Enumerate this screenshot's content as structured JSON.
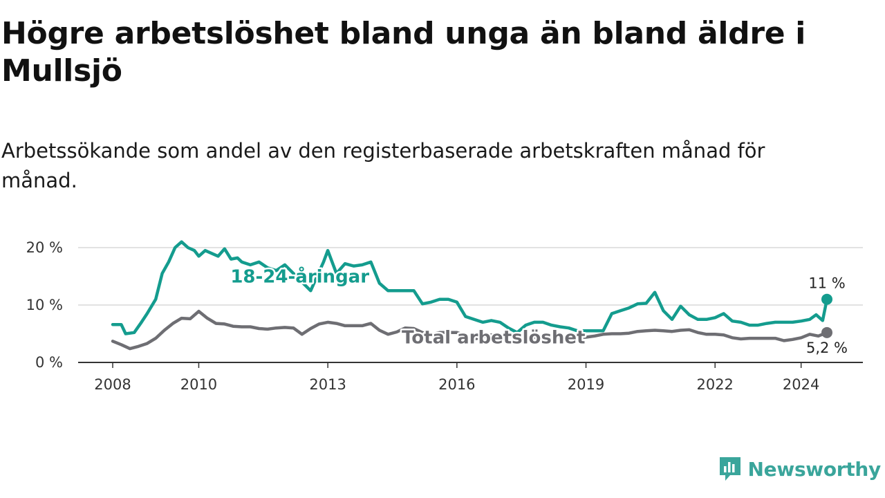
{
  "header": {
    "title": "Högre arbetslöshet bland unga än bland äldre i Mullsjö",
    "subtitle": "Arbetssökande som andel av den registerbaserade arbetskraften månad för månad."
  },
  "brand": {
    "name": "Newsworthy",
    "icon": "newsworthy-logo-icon",
    "color": "#3aa59b"
  },
  "chart_data": {
    "type": "line",
    "title": "Högre arbetslöshet bland unga än bland äldre i Mullsjö",
    "subtitle": "Arbetssökande som andel av den registerbaserade arbetskraften månad för månad.",
    "xlabel": "",
    "ylabel": "",
    "xlim": [
      2008.0,
      2025.3
    ],
    "ylim": [
      0,
      20
    ],
    "grid": true,
    "y_ticks": [
      {
        "value": 0,
        "label": "0 %"
      },
      {
        "value": 10,
        "label": "10 %"
      },
      {
        "value": 20,
        "label": "20 %"
      }
    ],
    "x_ticks": [
      {
        "value": 2008,
        "label": "2008"
      },
      {
        "value": 2010,
        "label": "2010"
      },
      {
        "value": 2013,
        "label": "2013"
      },
      {
        "value": 2016,
        "label": "2016"
      },
      {
        "value": 2019,
        "label": "2019"
      },
      {
        "value": 2022,
        "label": "2022"
      },
      {
        "value": 2024,
        "label": "2024"
      }
    ],
    "series": [
      {
        "name": "18-24-åringar",
        "color": "#149c8e",
        "end_value": 11,
        "end_label": "11 %",
        "x": [
          2008.0,
          2008.2,
          2008.3,
          2008.5,
          2008.65,
          2008.8,
          2009.0,
          2009.15,
          2009.3,
          2009.45,
          2009.6,
          2009.75,
          2009.9,
          2010.0,
          2010.15,
          2010.3,
          2010.45,
          2010.6,
          2010.75,
          2010.9,
          2011.0,
          2011.2,
          2011.4,
          2011.6,
          2011.8,
          2012.0,
          2012.2,
          2012.4,
          2012.6,
          2012.75,
          2012.9,
          2013.0,
          2013.2,
          2013.4,
          2013.6,
          2013.8,
          2014.0,
          2014.2,
          2014.4,
          2014.6,
          2014.8,
          2015.0,
          2015.2,
          2015.4,
          2015.6,
          2015.8,
          2016.0,
          2016.2,
          2016.4,
          2016.6,
          2016.8,
          2017.0,
          2017.2,
          2017.4,
          2017.6,
          2017.8,
          2018.0,
          2018.2,
          2018.4,
          2018.6,
          2018.8,
          2019.0,
          2019.2,
          2019.4,
          2019.6,
          2019.8,
          2020.0,
          2020.2,
          2020.4,
          2020.6,
          2020.8,
          2021.0,
          2021.2,
          2021.4,
          2021.6,
          2021.8,
          2022.0,
          2022.2,
          2022.4,
          2022.6,
          2022.8,
          2023.0,
          2023.2,
          2023.4,
          2023.6,
          2023.8,
          2024.0,
          2024.2,
          2024.35,
          2024.5,
          2024.6
        ],
        "values": [
          6.6,
          6.6,
          5.0,
          5.2,
          6.8,
          8.5,
          11.0,
          15.5,
          17.5,
          20.0,
          21.0,
          20.0,
          19.5,
          18.5,
          19.5,
          19.0,
          18.5,
          19.8,
          18.0,
          18.2,
          17.5,
          17.0,
          17.5,
          16.5,
          16.0,
          17.0,
          15.5,
          14.0,
          12.5,
          15.0,
          17.5,
          19.5,
          15.5,
          17.2,
          16.8,
          17.0,
          17.5,
          13.8,
          12.5,
          12.5,
          12.5,
          12.5,
          10.2,
          10.5,
          11.0,
          11.0,
          10.5,
          8.0,
          7.5,
          7.0,
          7.3,
          7.0,
          6.0,
          5.2,
          6.5,
          7.0,
          7.0,
          6.5,
          6.2,
          6.0,
          5.5,
          5.5,
          5.5,
          5.5,
          8.5,
          9.0,
          9.5,
          10.2,
          10.3,
          12.2,
          9.0,
          7.5,
          9.8,
          8.3,
          7.5,
          7.5,
          7.8,
          8.5,
          7.2,
          7.0,
          6.5,
          6.5,
          6.8,
          7.0,
          7.0,
          7.0,
          7.2,
          7.5,
          8.3,
          7.3,
          11.0
        ]
      },
      {
        "name": "Total arbetslöshet",
        "color": "#6e6e73",
        "end_value": 5.2,
        "end_label": "5,2 %",
        "x": [
          2008.0,
          2008.2,
          2008.4,
          2008.6,
          2008.8,
          2009.0,
          2009.2,
          2009.4,
          2009.6,
          2009.8,
          2010.0,
          2010.2,
          2010.4,
          2010.6,
          2010.8,
          2011.0,
          2011.2,
          2011.4,
          2011.6,
          2011.8,
          2012.0,
          2012.2,
          2012.4,
          2012.6,
          2012.8,
          2013.0,
          2013.2,
          2013.4,
          2013.6,
          2013.8,
          2014.0,
          2014.2,
          2014.4,
          2014.6,
          2014.8,
          2015.0,
          2015.2,
          2015.4,
          2015.6,
          2015.8,
          2016.0,
          2016.2,
          2016.4,
          2016.6,
          2016.8,
          2017.0,
          2017.2,
          2017.4,
          2017.6,
          2017.8,
          2018.0,
          2018.2,
          2018.4,
          2018.6,
          2018.8,
          2019.0,
          2019.2,
          2019.4,
          2019.6,
          2019.8,
          2020.0,
          2020.2,
          2020.4,
          2020.6,
          2020.8,
          2021.0,
          2021.2,
          2021.4,
          2021.6,
          2021.8,
          2022.0,
          2022.2,
          2022.4,
          2022.6,
          2022.8,
          2023.0,
          2023.2,
          2023.4,
          2023.6,
          2023.8,
          2024.0,
          2024.2,
          2024.4,
          2024.6
        ],
        "values": [
          3.7,
          3.1,
          2.4,
          2.8,
          3.3,
          4.2,
          5.6,
          6.8,
          7.7,
          7.6,
          8.9,
          7.7,
          6.8,
          6.7,
          6.3,
          6.2,
          6.2,
          5.9,
          5.8,
          6.0,
          6.1,
          6.0,
          4.9,
          5.9,
          6.7,
          7.0,
          6.8,
          6.4,
          6.4,
          6.4,
          6.8,
          5.6,
          4.9,
          5.3,
          6.0,
          5.9,
          5.2,
          4.8,
          5.2,
          5.2,
          5.2,
          4.7,
          4.1,
          4.4,
          4.8,
          4.8,
          4.6,
          4.5,
          4.4,
          4.4,
          4.4,
          4.5,
          4.3,
          4.3,
          4.3,
          4.4,
          4.6,
          4.9,
          5.0,
          5.0,
          5.1,
          5.4,
          5.5,
          5.6,
          5.5,
          5.4,
          5.6,
          5.7,
          5.2,
          4.9,
          4.9,
          4.8,
          4.3,
          4.1,
          4.2,
          4.2,
          4.2,
          4.2,
          3.8,
          4.0,
          4.3,
          4.9,
          4.6,
          5.2
        ]
      }
    ],
    "annotations": [
      {
        "series": "18-24-åringar",
        "text": "18-24-åringar",
        "x": 2012.35,
        "y": 13.9
      },
      {
        "series": "Total arbetslöshet",
        "text": "Total arbetslöshet",
        "x": 2016.85,
        "y": 3.3
      }
    ]
  }
}
